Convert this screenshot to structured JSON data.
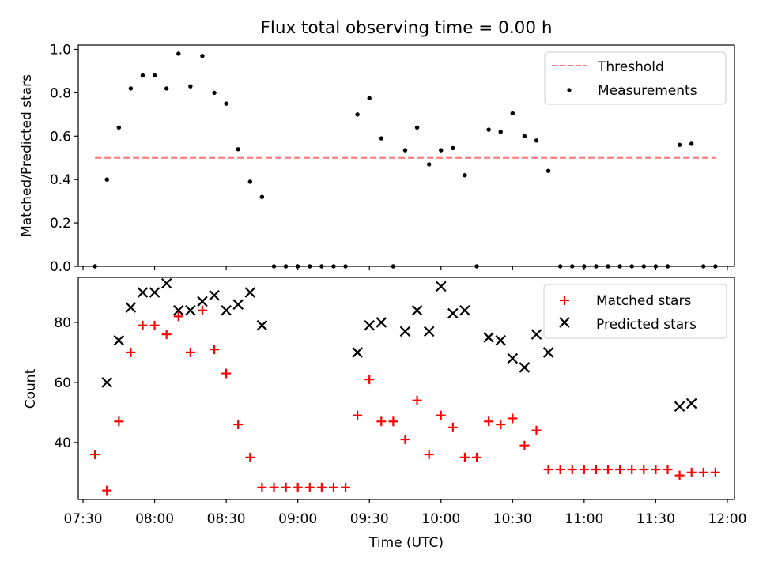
{
  "figure": {
    "title": "Flux total observing time = 0.00 h"
  },
  "chart_data": [
    {
      "type": "scatter",
      "ylabel": "Matched/Predicted stars",
      "ylim": [
        0,
        1.02
      ],
      "yticks": [
        0.0,
        0.2,
        0.4,
        0.6,
        0.8,
        1.0
      ],
      "ytick_labels": [
        "0.0",
        "0.2",
        "0.4",
        "0.6",
        "0.8",
        "1.0"
      ],
      "legend_placement": "top-right",
      "threshold": {
        "name": "Threshold",
        "value": 0.5,
        "x_range": [
          "07:35",
          "11:55"
        ],
        "color": "#ff7f7f",
        "style": "dashed"
      },
      "series": [
        {
          "name": "Measurements",
          "marker": "dot",
          "color": "#000000",
          "x": [
            "07:35",
            "07:40",
            "07:45",
            "07:50",
            "07:55",
            "08:00",
            "08:05",
            "08:10",
            "08:15",
            "08:20",
            "08:25",
            "08:30",
            "08:35",
            "08:40",
            "08:45",
            "08:50",
            "08:55",
            "09:00",
            "09:05",
            "09:10",
            "09:15",
            "09:20",
            "09:25",
            "09:30",
            "09:35",
            "09:40",
            "09:45",
            "09:50",
            "09:55",
            "10:00",
            "10:05",
            "10:10",
            "10:15",
            "10:20",
            "10:25",
            "10:30",
            "10:35",
            "10:40",
            "10:45",
            "10:50",
            "10:55",
            "11:00",
            "11:05",
            "11:10",
            "11:15",
            "11:20",
            "11:25",
            "11:30",
            "11:35",
            "11:40",
            "11:45",
            "11:50",
            "11:55"
          ],
          "y": [
            0.0,
            0.4,
            0.64,
            0.82,
            0.88,
            0.88,
            0.82,
            0.98,
            0.83,
            0.97,
            0.8,
            0.75,
            0.54,
            0.39,
            0.32,
            0.0,
            0.0,
            0.0,
            0.0,
            0.0,
            0.0,
            0.0,
            0.7,
            0.775,
            0.59,
            0.0,
            0.535,
            0.64,
            0.47,
            0.535,
            0.545,
            0.42,
            0.0,
            0.63,
            0.62,
            0.705,
            0.6,
            0.58,
            0.44,
            0.0,
            0.0,
            0.0,
            0.0,
            0.0,
            0.0,
            0.0,
            0.0,
            0.0,
            0.0,
            0.56,
            0.565,
            0.0,
            0.0
          ]
        }
      ]
    },
    {
      "type": "scatter",
      "xlabel": "Time (UTC)",
      "ylabel": "Count",
      "ylim": [
        21,
        95
      ],
      "yticks": [
        40,
        60,
        80
      ],
      "ytick_labels": [
        "40",
        "60",
        "80"
      ],
      "xlim": [
        "07:28",
        "12:03"
      ],
      "xticks": [
        "07:30",
        "08:00",
        "08:30",
        "09:00",
        "09:30",
        "10:00",
        "10:30",
        "11:00",
        "11:30",
        "12:00"
      ],
      "legend_placement": "top-right",
      "series": [
        {
          "name": "Matched stars",
          "marker": "plus",
          "color": "#ff0000",
          "x": [
            "07:35",
            "07:40",
            "07:45",
            "07:50",
            "07:55",
            "08:00",
            "08:05",
            "08:10",
            "08:15",
            "08:20",
            "08:25",
            "08:30",
            "08:35",
            "08:40",
            "08:45",
            "08:50",
            "08:55",
            "09:00",
            "09:05",
            "09:10",
            "09:15",
            "09:20",
            "09:25",
            "09:30",
            "09:35",
            "09:40",
            "09:45",
            "09:50",
            "09:55",
            "10:00",
            "10:05",
            "10:10",
            "10:15",
            "10:20",
            "10:25",
            "10:30",
            "10:35",
            "10:40",
            "10:45",
            "10:50",
            "10:55",
            "11:00",
            "11:05",
            "11:10",
            "11:15",
            "11:20",
            "11:25",
            "11:30",
            "11:35",
            "11:40",
            "11:45",
            "11:50",
            "11:55"
          ],
          "y": [
            36,
            24,
            47,
            70,
            79,
            79,
            76,
            82,
            70,
            84,
            71,
            63,
            46,
            35,
            25,
            25,
            25,
            25,
            25,
            25,
            25,
            25,
            49,
            61,
            47,
            47,
            41,
            54,
            36,
            49,
            45,
            35,
            35,
            47,
            46,
            48,
            39,
            44,
            31,
            31,
            31,
            31,
            31,
            31,
            31,
            31,
            31,
            31,
            31,
            29,
            30,
            30,
            30
          ]
        },
        {
          "name": "Predicted stars",
          "marker": "x",
          "color": "#000000",
          "x": [
            "07:40",
            "07:45",
            "07:50",
            "07:55",
            "08:00",
            "08:05",
            "08:10",
            "08:15",
            "08:20",
            "08:25",
            "08:30",
            "08:35",
            "08:40",
            "08:45",
            "09:25",
            "09:30",
            "09:35",
            "09:45",
            "09:50",
            "09:55",
            "10:00",
            "10:05",
            "10:10",
            "10:20",
            "10:25",
            "10:30",
            "10:35",
            "10:40",
            "10:45",
            "11:40",
            "11:45"
          ],
          "y": [
            60,
            74,
            85,
            90,
            90,
            93,
            84,
            84,
            87,
            89,
            84,
            86,
            90,
            79,
            70,
            79,
            80,
            77,
            84,
            77,
            92,
            83,
            84,
            75,
            74,
            68,
            65,
            76,
            70,
            52,
            53
          ]
        }
      ]
    }
  ]
}
